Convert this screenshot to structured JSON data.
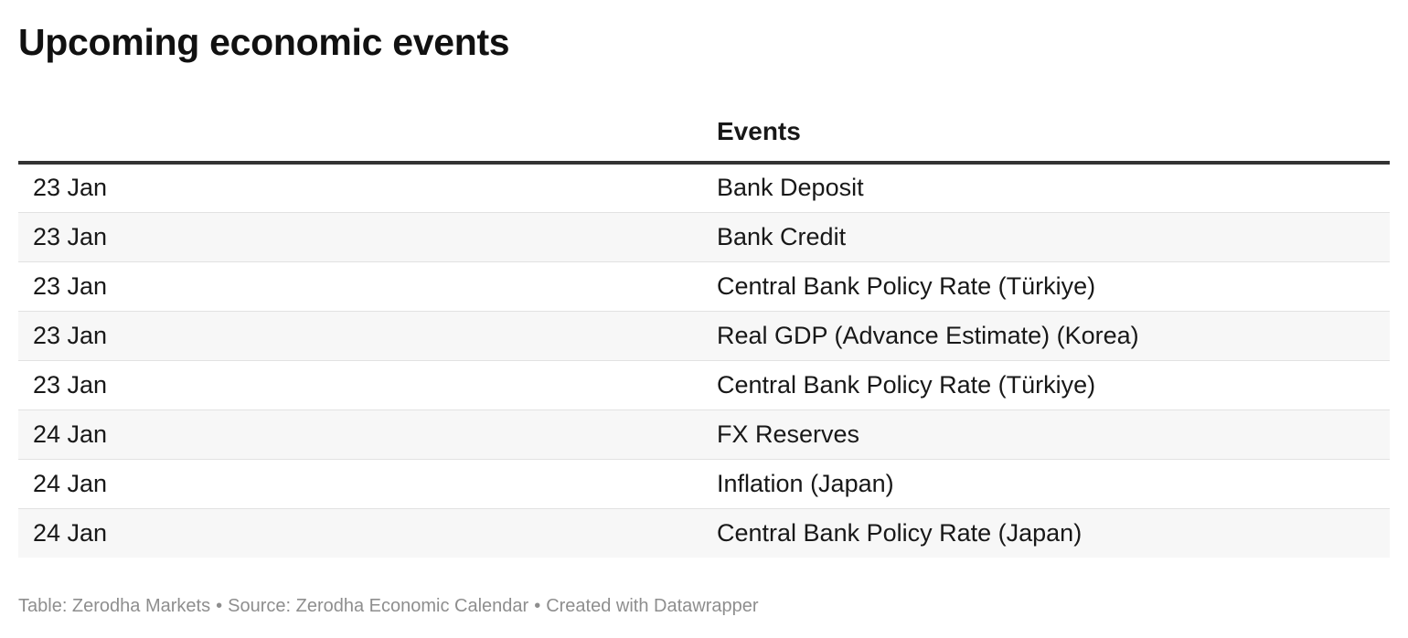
{
  "title": "Upcoming economic events",
  "chart_data": {
    "type": "table",
    "title": "Upcoming economic events",
    "columns": [
      "",
      "Events"
    ],
    "rows": [
      {
        "date": "23 Jan",
        "event": "Bank Deposit"
      },
      {
        "date": "23 Jan",
        "event": "Bank Credit"
      },
      {
        "date": "23 Jan",
        "event": "Central Bank Policy Rate (Türkiye)"
      },
      {
        "date": "23 Jan",
        "event": "Real GDP (Advance Estimate) (Korea)"
      },
      {
        "date": "23 Jan",
        "event": "Central Bank Policy Rate (Türkiye)"
      },
      {
        "date": "24 Jan",
        "event": "FX Reserves"
      },
      {
        "date": "24 Jan",
        "event": "Inflation (Japan)"
      },
      {
        "date": "24 Jan",
        "event": "Central Bank Policy Rate (Japan)"
      }
    ]
  },
  "footer": {
    "table_credit": "Table: Zerodha Markets",
    "separator": "•",
    "source": "Source: Zerodha Economic Calendar",
    "created_with": "Created with Datawrapper"
  }
}
